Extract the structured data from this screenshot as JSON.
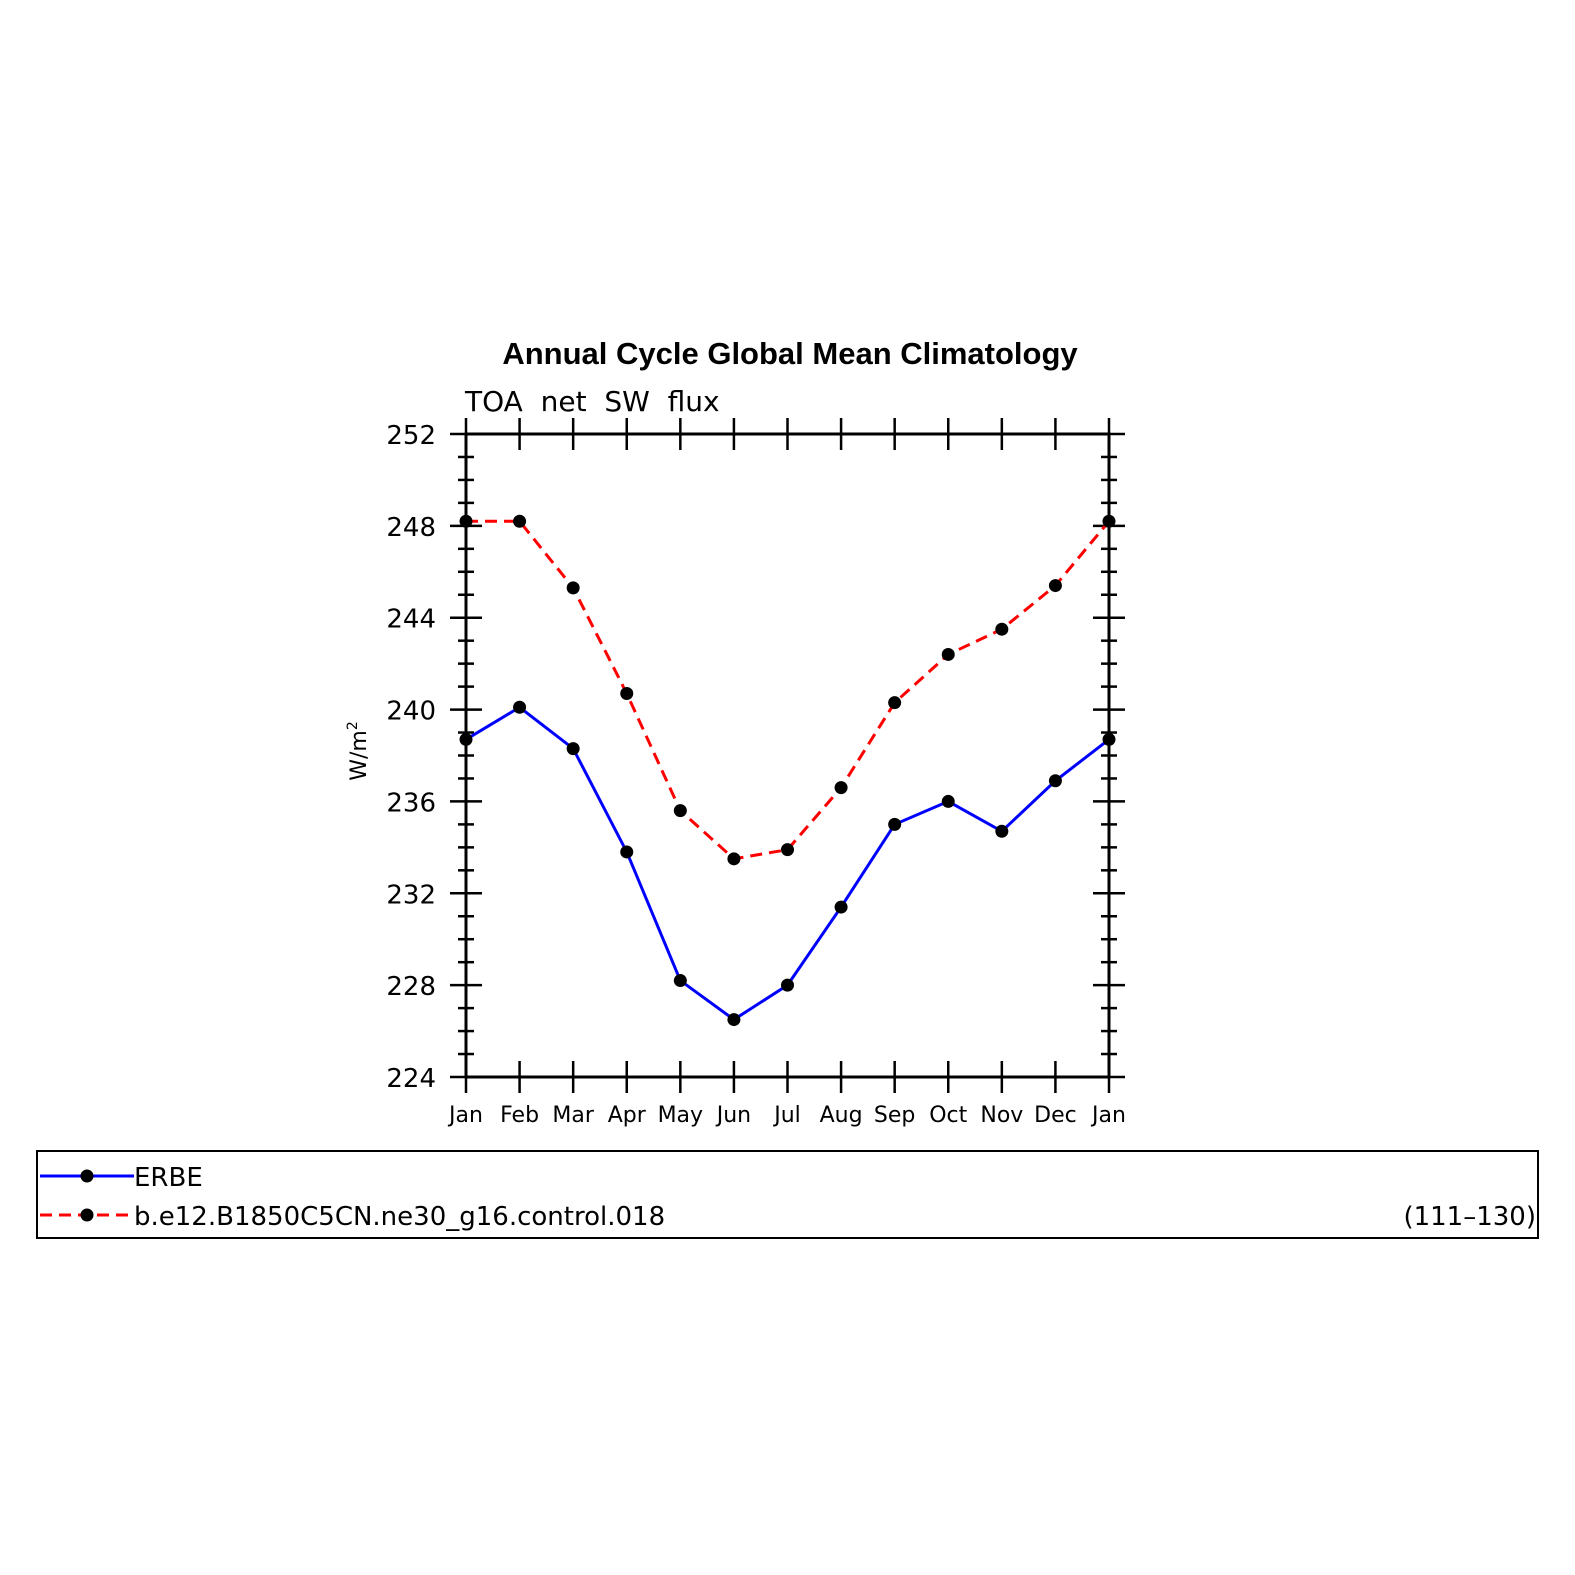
{
  "chart_data": {
    "type": "line",
    "title": "Annual Cycle Global Mean Climatology",
    "subtitle": "TOA  net  SW  flux",
    "ylabel": "W/m",
    "ylabel_superscript": "2",
    "xlabel": "",
    "categories": [
      "Jan",
      "Feb",
      "Mar",
      "Apr",
      "May",
      "Jun",
      "Jul",
      "Aug",
      "Sep",
      "Oct",
      "Nov",
      "Dec",
      "Jan"
    ],
    "ylim": [
      224,
      252
    ],
    "yticks": [
      224,
      228,
      232,
      236,
      240,
      244,
      248,
      252
    ],
    "series": [
      {
        "name": "ERBE",
        "color": "#0000ff",
        "style": "solid",
        "values": [
          238.7,
          240.1,
          238.3,
          233.8,
          228.2,
          226.5,
          228.0,
          231.4,
          235.0,
          236.0,
          234.7,
          236.9,
          238.7
        ]
      },
      {
        "name": "b.e12.B1850C5CN.ne30_g16.control.018",
        "color": "#ff0000",
        "style": "dashed",
        "values": [
          248.2,
          248.2,
          245.3,
          240.7,
          235.6,
          233.5,
          233.9,
          236.6,
          240.3,
          242.4,
          243.5,
          245.4,
          248.2
        ]
      }
    ],
    "legend": {
      "placement": "bottom",
      "entries": [
        {
          "label": "ERBE",
          "note": ""
        },
        {
          "label": "b.e12.B1850C5CN.ne30_g16.control.018",
          "note": "(111–130)"
        }
      ]
    },
    "grid": false,
    "marker_color": "#000000"
  }
}
